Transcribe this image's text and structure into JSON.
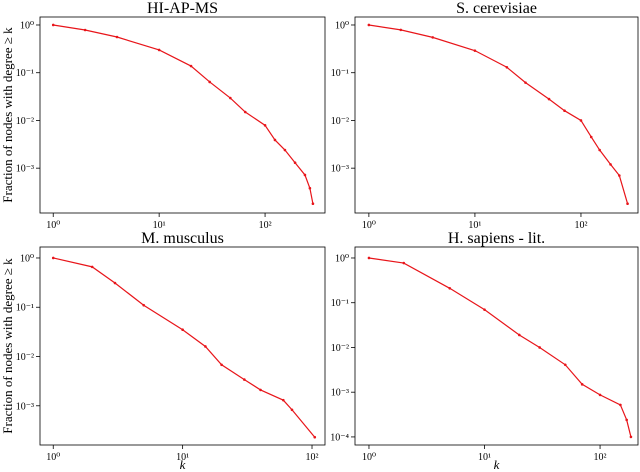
{
  "chart_data": [
    {
      "type": "line",
      "title": "HI-AP-MS",
      "ylabel": "Fraction of nodes with degree ≥ k",
      "xscale": "log",
      "yscale": "log",
      "x": [
        1,
        2,
        4,
        10,
        20,
        30,
        47,
        65,
        100,
        124,
        154,
        192,
        238,
        265,
        283
      ],
      "series": [
        {
          "color": "#e8151a",
          "values": [
            1,
            0.785,
            0.56,
            0.3,
            0.138,
            0.064,
            0.0295,
            0.015,
            0.0079,
            0.0039,
            0.0024,
            0.0013,
            0.00072,
            0.00038,
            0.00018
          ]
        }
      ],
      "xlim": [
        0.75,
        368
      ],
      "ylim": [
        0.000115,
        1.47
      ],
      "xticks": [
        {
          "value": 1,
          "label": "10⁰"
        },
        {
          "value": 10,
          "label": "10¹"
        },
        {
          "value": 100,
          "label": "10²"
        }
      ],
      "yticks": [
        {
          "value": 1,
          "label": "10⁰"
        },
        {
          "value": 0.1,
          "label": "10⁻¹"
        },
        {
          "value": 0.01,
          "label": "10⁻²"
        },
        {
          "value": 0.001,
          "label": "10⁻³"
        }
      ]
    },
    {
      "type": "line",
      "title": "S. cerevisiae",
      "xscale": "log",
      "yscale": "log",
      "x": [
        1,
        2,
        4,
        10,
        20,
        30,
        50,
        70,
        100,
        125,
        150,
        190,
        230,
        275
      ],
      "series": [
        {
          "color": "#e8151a",
          "values": [
            1,
            0.79,
            0.55,
            0.29,
            0.13,
            0.062,
            0.028,
            0.016,
            0.01,
            0.0045,
            0.0024,
            0.0012,
            0.0007,
            0.00018
          ]
        }
      ],
      "xlim": [
        0.74,
        345
      ],
      "ylim": [
        0.000115,
        1.47
      ],
      "xticks": [
        {
          "value": 1,
          "label": "10⁰"
        },
        {
          "value": 10,
          "label": "10¹"
        },
        {
          "value": 100,
          "label": "10²"
        }
      ],
      "yticks": [
        {
          "value": 1,
          "label": "10⁰"
        },
        {
          "value": 0.1,
          "label": "10⁻¹"
        },
        {
          "value": 0.01,
          "label": "10⁻²"
        },
        {
          "value": 0.001,
          "label": "10⁻³"
        }
      ]
    },
    {
      "type": "line",
      "title": "M. musculus",
      "ylabel": "Fraction of nodes with degree ≥ k",
      "xlabel": "k",
      "xscale": "log",
      "yscale": "log",
      "x": [
        1,
        2,
        3,
        5,
        10,
        15,
        20,
        30,
        40,
        60,
        70,
        105
      ],
      "series": [
        {
          "color": "#e8151a",
          "values": [
            1,
            0.66,
            0.31,
            0.11,
            0.035,
            0.016,
            0.0068,
            0.0034,
            0.0021,
            0.0013,
            0.00083,
            0.00023
          ]
        }
      ],
      "xlim": [
        0.79,
        126
      ],
      "ylim": [
        0.00016,
        1.67
      ],
      "xticks": [
        {
          "value": 1,
          "label": "10⁰"
        },
        {
          "value": 10,
          "label": "10¹"
        },
        {
          "value": 100,
          "label": "10²"
        }
      ],
      "yticks": [
        {
          "value": 1,
          "label": "10⁰"
        },
        {
          "value": 0.1,
          "label": "10⁻¹"
        },
        {
          "value": 0.01,
          "label": "10⁻²"
        },
        {
          "value": 0.001,
          "label": "10⁻³"
        }
      ]
    },
    {
      "type": "line",
      "title": "H. sapiens - lit.",
      "xlabel": "k",
      "xscale": "log",
      "yscale": "log",
      "x": [
        1,
        2,
        5,
        10,
        20,
        30,
        50,
        70,
        100,
        150,
        170,
        185
      ],
      "series": [
        {
          "color": "#e8151a",
          "values": [
            1,
            0.77,
            0.21,
            0.07,
            0.019,
            0.01,
            0.0041,
            0.0015,
            0.00087,
            0.00052,
            0.00024,
            0.0001
          ]
        }
      ],
      "xlim": [
        0.757,
        213
      ],
      "ylim": [
        6.6e-05,
        1.76
      ],
      "xticks": [
        {
          "value": 1,
          "label": "10⁰"
        },
        {
          "value": 10,
          "label": "10¹"
        },
        {
          "value": 100,
          "label": "10²"
        }
      ],
      "yticks": [
        {
          "value": 1,
          "label": "10⁰"
        },
        {
          "value": 0.1,
          "label": "10⁻¹"
        },
        {
          "value": 0.01,
          "label": "10⁻²"
        },
        {
          "value": 0.001,
          "label": "10⁻³"
        },
        {
          "value": 0.0001,
          "label": "10⁻⁴"
        }
      ]
    }
  ]
}
